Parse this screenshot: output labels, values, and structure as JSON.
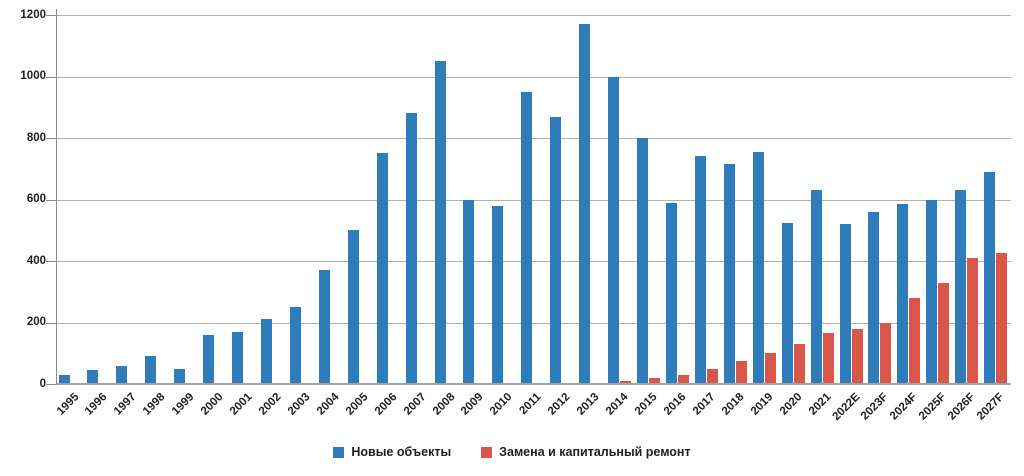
{
  "chart_data": {
    "type": "bar",
    "title": "",
    "xlabel": "",
    "ylabel": "",
    "categories": [
      "1995",
      "1996",
      "1997",
      "1998",
      "1999",
      "2000",
      "2001",
      "2002",
      "2003",
      "2004",
      "2005",
      "2006",
      "2007",
      "2008",
      "2009",
      "2010",
      "2011",
      "2012",
      "2013",
      "2014",
      "2015",
      "2016",
      "2017",
      "2018",
      "2019",
      "2020",
      "2021",
      "2022E",
      "2023F",
      "2024F",
      "2025F",
      "2026F",
      "2027F"
    ],
    "series": [
      {
        "name": "Новые объекты",
        "color": "#2e7cba",
        "values": [
          30,
          45,
          60,
          90,
          50,
          160,
          170,
          210,
          250,
          370,
          500,
          750,
          880,
          1050,
          600,
          580,
          950,
          870,
          1170,
          1000,
          800,
          590,
          740,
          715,
          755,
          525,
          630,
          520,
          560,
          585,
          600,
          630,
          690
        ]
      },
      {
        "name": "Замена и капитальный ремонт",
        "color": "#d8564a",
        "values": [
          0,
          0,
          0,
          0,
          0,
          0,
          0,
          0,
          0,
          0,
          0,
          0,
          0,
          0,
          0,
          0,
          0,
          0,
          0,
          10,
          20,
          30,
          50,
          75,
          100,
          130,
          165,
          180,
          200,
          280,
          330,
          410,
          425
        ]
      }
    ],
    "ylim": [
      0,
      1200
    ],
    "yticks": [
      0,
      200,
      400,
      600,
      800,
      1000,
      1200
    ],
    "grid": true,
    "legend_position": "bottom"
  }
}
